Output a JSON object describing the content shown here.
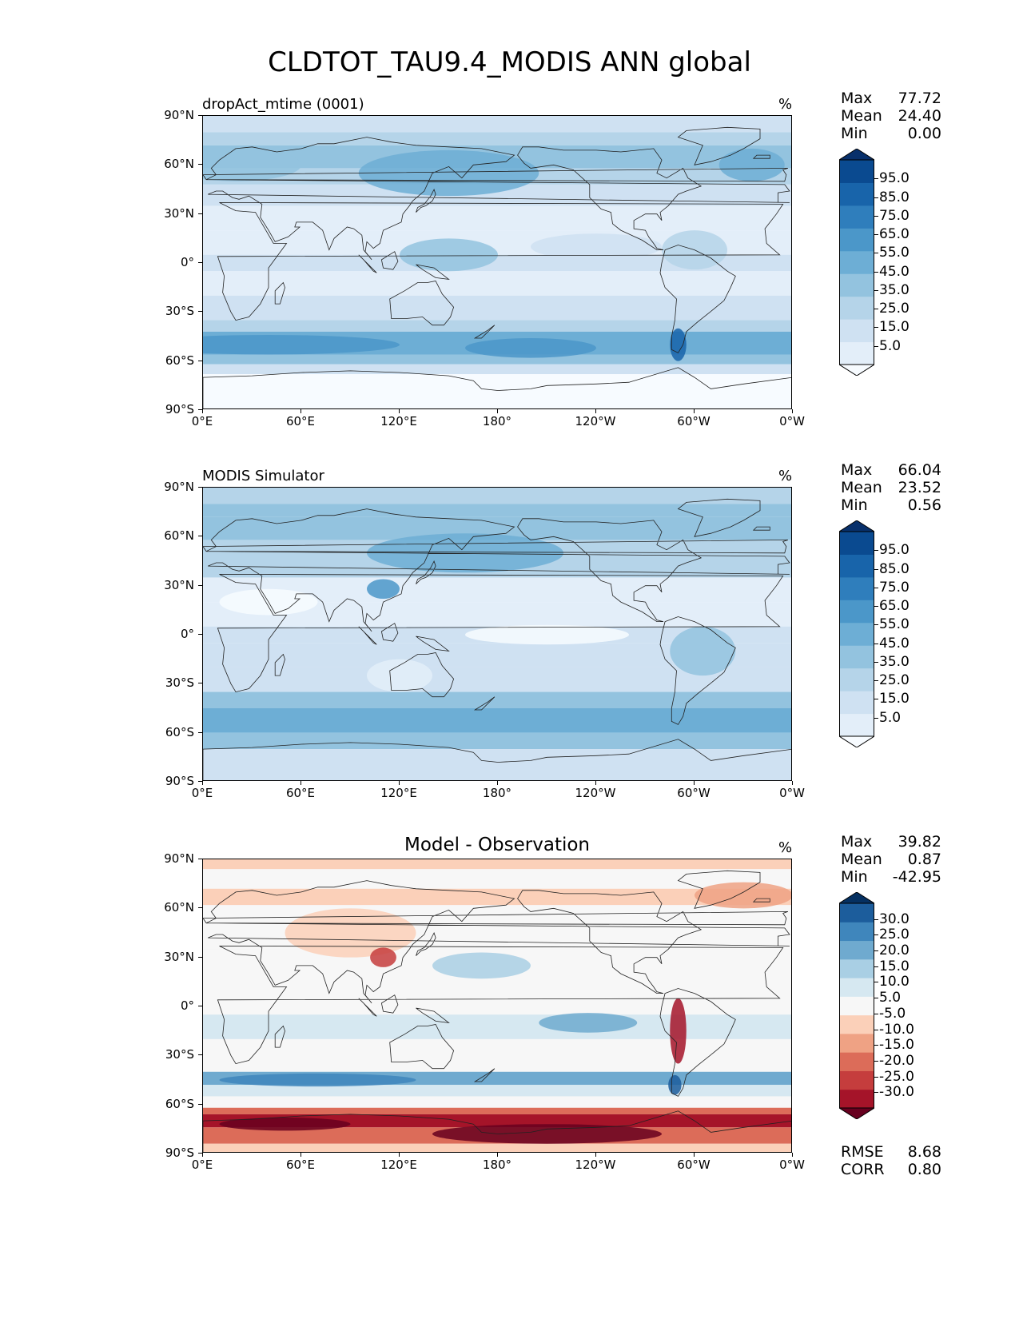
{
  "figure": {
    "title": "CLDTOT_TAU9.4_MODIS ANN global"
  },
  "axes": {
    "lat_ticks": [
      "90°N",
      "60°N",
      "30°N",
      "0°",
      "30°S",
      "60°S",
      "90°S"
    ],
    "lon_ticks": [
      "0°E",
      "60°E",
      "120°E",
      "180°",
      "120°W",
      "60°W",
      "0°W"
    ]
  },
  "panels": [
    {
      "id": "model",
      "title": "dropAct_mtime (0001)",
      "title_style": "left",
      "units": "%",
      "stats": {
        "max_label": "Max",
        "max": "77.72",
        "mean_label": "Mean",
        "mean": "24.40",
        "min_label": "Min",
        "min": "0.00"
      }
    },
    {
      "id": "obs",
      "title": "MODIS Simulator",
      "title_style": "left",
      "units": "%",
      "stats": {
        "max_label": "Max",
        "max": "66.04",
        "mean_label": "Mean",
        "mean": "23.52",
        "min_label": "Min",
        "min": "0.56"
      }
    },
    {
      "id": "diff",
      "title": "Model - Observation",
      "title_style": "center",
      "units": "%",
      "stats": {
        "max_label": "Max",
        "max": "39.82",
        "mean_label": "Mean",
        "mean": "0.87",
        "min_label": "Min",
        "min": "-42.95"
      },
      "metrics": {
        "rmse_label": "RMSE",
        "rmse": "8.68",
        "corr_label": "CORR",
        "corr": "0.80"
      }
    }
  ],
  "chart_data": [
    {
      "type": "heatmap",
      "title": "dropAct_mtime (0001)",
      "units": "%",
      "xlim": [
        0,
        360
      ],
      "ylim": [
        -90,
        90
      ],
      "colorbar": {
        "ticks": [
          "95.0",
          "85.0",
          "75.0",
          "65.0",
          "55.0",
          "45.0",
          "35.0",
          "25.0",
          "15.0",
          "5.0"
        ],
        "colors": [
          "#f7fbff",
          "#e3eef9",
          "#cfe1f2",
          "#b5d4e9",
          "#93c3df",
          "#6daed5",
          "#4b97c9",
          "#2f7ebc",
          "#1864aa",
          "#0a4a90",
          "#08306b"
        ],
        "extend": "both"
      },
      "fields": {
        "max": 77.72,
        "mean": 24.4,
        "min": 0.0
      }
    },
    {
      "type": "heatmap",
      "title": "MODIS Simulator",
      "units": "%",
      "xlim": [
        0,
        360
      ],
      "ylim": [
        -90,
        90
      ],
      "colorbar": {
        "ticks": [
          "95.0",
          "85.0",
          "75.0",
          "65.0",
          "55.0",
          "45.0",
          "35.0",
          "25.0",
          "15.0",
          "5.0"
        ],
        "colors": [
          "#f7fbff",
          "#e3eef9",
          "#cfe1f2",
          "#b5d4e9",
          "#93c3df",
          "#6daed5",
          "#4b97c9",
          "#2f7ebc",
          "#1864aa",
          "#0a4a90",
          "#08306b"
        ],
        "extend": "both"
      },
      "fields": {
        "max": 66.04,
        "mean": 23.52,
        "min": 0.56
      }
    },
    {
      "type": "heatmap",
      "title": "Model - Observation",
      "units": "%",
      "xlim": [
        0,
        360
      ],
      "ylim": [
        -90,
        90
      ],
      "colorbar": {
        "ticks": [
          "30.0",
          "25.0",
          "20.0",
          "15.0",
          "10.0",
          "5.0",
          "-5.0",
          "-10.0",
          "-15.0",
          "-20.0",
          "-25.0",
          "-30.0"
        ],
        "colors": [
          "#67001f",
          "#a51429",
          "#c53d3d",
          "#dc6c59",
          "#efa284",
          "#fbd0b9",
          "#f7f7f7",
          "#d6e8f1",
          "#a9cfe4",
          "#6faacf",
          "#3f86bc",
          "#1c5d9c",
          "#053061"
        ],
        "extend": "both"
      },
      "fields": {
        "max": 39.82,
        "mean": 0.87,
        "min": -42.95,
        "rmse": 8.68,
        "corr": 0.8
      }
    }
  ]
}
